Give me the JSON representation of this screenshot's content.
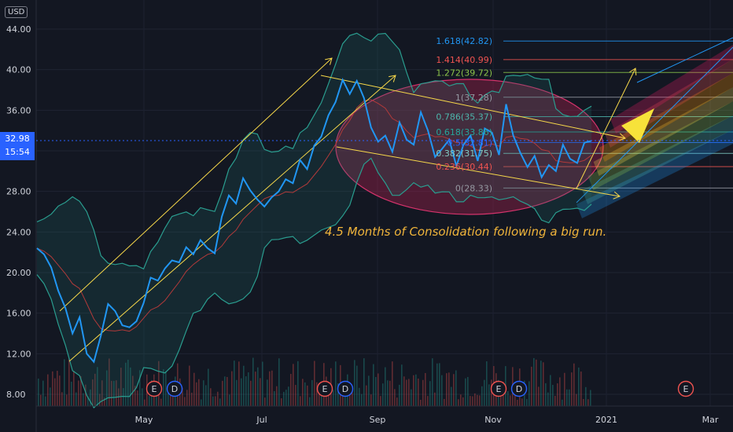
{
  "currency": "USD",
  "price_tag": {
    "price": "32.98",
    "countdown": "15:54"
  },
  "colors": {
    "price": "#2196f3",
    "channel": "#f7d84a",
    "bollinger": "#2a9d8f",
    "ellipse": "#b0234f",
    "note": "#f0b43a"
  },
  "annotation": "4.5 Months of Consolidation following a big run.",
  "chart_data": {
    "type": "line",
    "title": "",
    "xlabel": "",
    "ylabel": "",
    "y_ticks": [
      "44.00",
      "40.00",
      "36.00",
      "32.00",
      "28.00",
      "24.00",
      "20.00",
      "16.00",
      "12.00",
      "8.00"
    ],
    "x_ticks": [
      "May",
      "Jul",
      "Sep",
      "Nov",
      "2021",
      "Mar"
    ],
    "ylim": [
      8,
      45
    ],
    "grid": true,
    "series": [
      {
        "values": [
          22.4,
          21.8,
          20.5,
          18.2,
          16.5,
          14.0,
          15.6,
          12.0,
          11.2,
          13.8,
          16.9,
          16.2,
          14.8,
          14.6,
          15.2,
          17.0,
          19.5,
          19.2,
          20.4,
          21.2,
          21.0,
          22.5,
          21.8,
          23.2,
          22.4,
          21.9,
          25.5,
          27.6,
          26.8,
          29.3,
          28.1,
          27.2,
          26.5,
          27.4,
          28.0,
          29.2,
          28.8,
          31.1,
          30.2,
          32.5,
          33.4,
          35.5,
          36.8,
          39.0,
          37.6,
          38.9,
          37.2,
          34.3,
          32.9,
          33.5,
          31.9,
          34.8,
          33.1,
          32.6,
          35.8,
          34.0,
          31.4,
          32.2,
          33.1,
          30.5,
          32.6,
          33.5,
          31.0,
          34.2,
          33.8,
          31.6,
          36.6,
          33.5,
          31.8,
          30.4,
          31.5,
          29.4,
          30.6,
          30.0,
          32.6,
          31.2,
          30.8,
          32.8,
          32.98
        ]
      }
    ],
    "fib_levels": [
      {
        "label": "1.618(42.82)",
        "value": 42.82,
        "color": "#2196f3"
      },
      {
        "label": "1.414(40.99)",
        "value": 40.99,
        "color": "#ef5350"
      },
      {
        "label": "1.272(39.72)",
        "value": 39.72,
        "color": "#8bc34a"
      },
      {
        "label": "1(37.28)",
        "value": 37.28,
        "color": "#9598a1"
      },
      {
        "label": "0.786(35.37)",
        "value": 35.37,
        "color": "#4db6ac"
      },
      {
        "label": "0.618(33.86)",
        "value": 33.86,
        "color": "#26a69a"
      },
      {
        "label": "0.5(32.81)",
        "value": 32.81,
        "color": "#2962ff"
      },
      {
        "label": "0.382(31.75)",
        "value": 31.75,
        "color": "#80cbc4"
      },
      {
        "label": "0.236(30.44)",
        "value": 30.44,
        "color": "#ef5350"
      },
      {
        "label": "0(28.33)",
        "value": 28.33,
        "color": "#9598a1"
      }
    ],
    "event_markers": [
      {
        "label": "E",
        "type": "earnings"
      },
      {
        "label": "D",
        "type": "dividend"
      },
      {
        "label": "E",
        "type": "earnings"
      },
      {
        "label": "D",
        "type": "dividend"
      },
      {
        "label": "E",
        "type": "earnings"
      },
      {
        "label": "D",
        "type": "dividend"
      },
      {
        "label": "E",
        "type": "earnings"
      }
    ]
  }
}
